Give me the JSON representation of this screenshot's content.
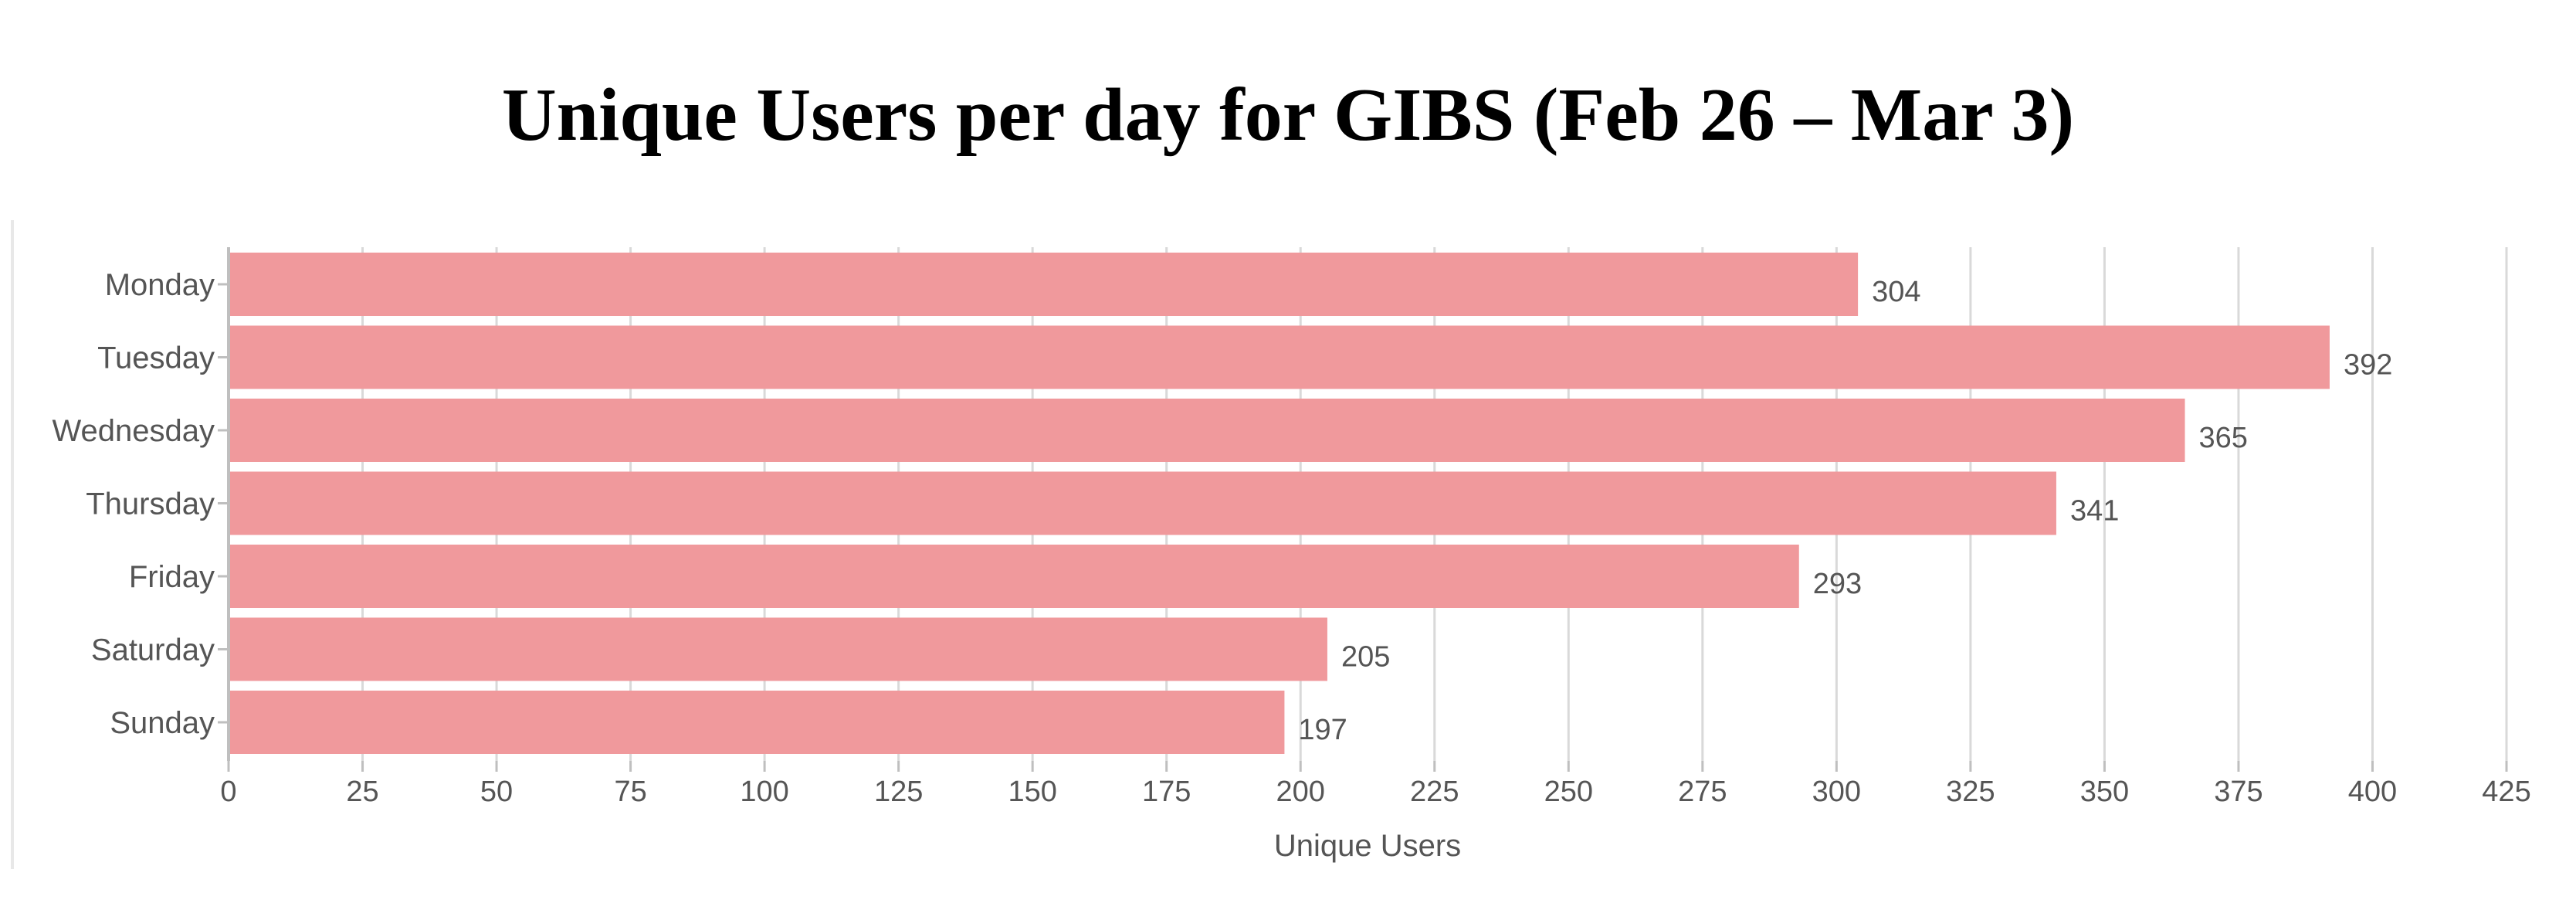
{
  "title": "Unique Users per day for GIBS (Feb 26 – Mar 3)",
  "colors": {
    "bar": "#f0999c",
    "grid": "#d9d9d9",
    "axis": "#bfbfbf",
    "text": "#555555"
  },
  "chart_data": {
    "type": "bar",
    "orientation": "horizontal",
    "title": "Unique Users per day for GIBS (Feb 26 – Mar 3)",
    "categories": [
      "Monday",
      "Tuesday",
      "Wednesday",
      "Thursday",
      "Friday",
      "Saturday",
      "Sunday"
    ],
    "values": [
      304,
      392,
      365,
      341,
      293,
      205,
      197
    ],
    "xlabel": "Unique Users",
    "ylabel": "",
    "xlim": [
      0,
      425
    ],
    "xticks": [
      0,
      25,
      50,
      75,
      100,
      125,
      150,
      175,
      200,
      225,
      250,
      275,
      300,
      325,
      350,
      375,
      400,
      425
    ],
    "data_labels": true,
    "grid": "vertical",
    "legend": "none"
  }
}
